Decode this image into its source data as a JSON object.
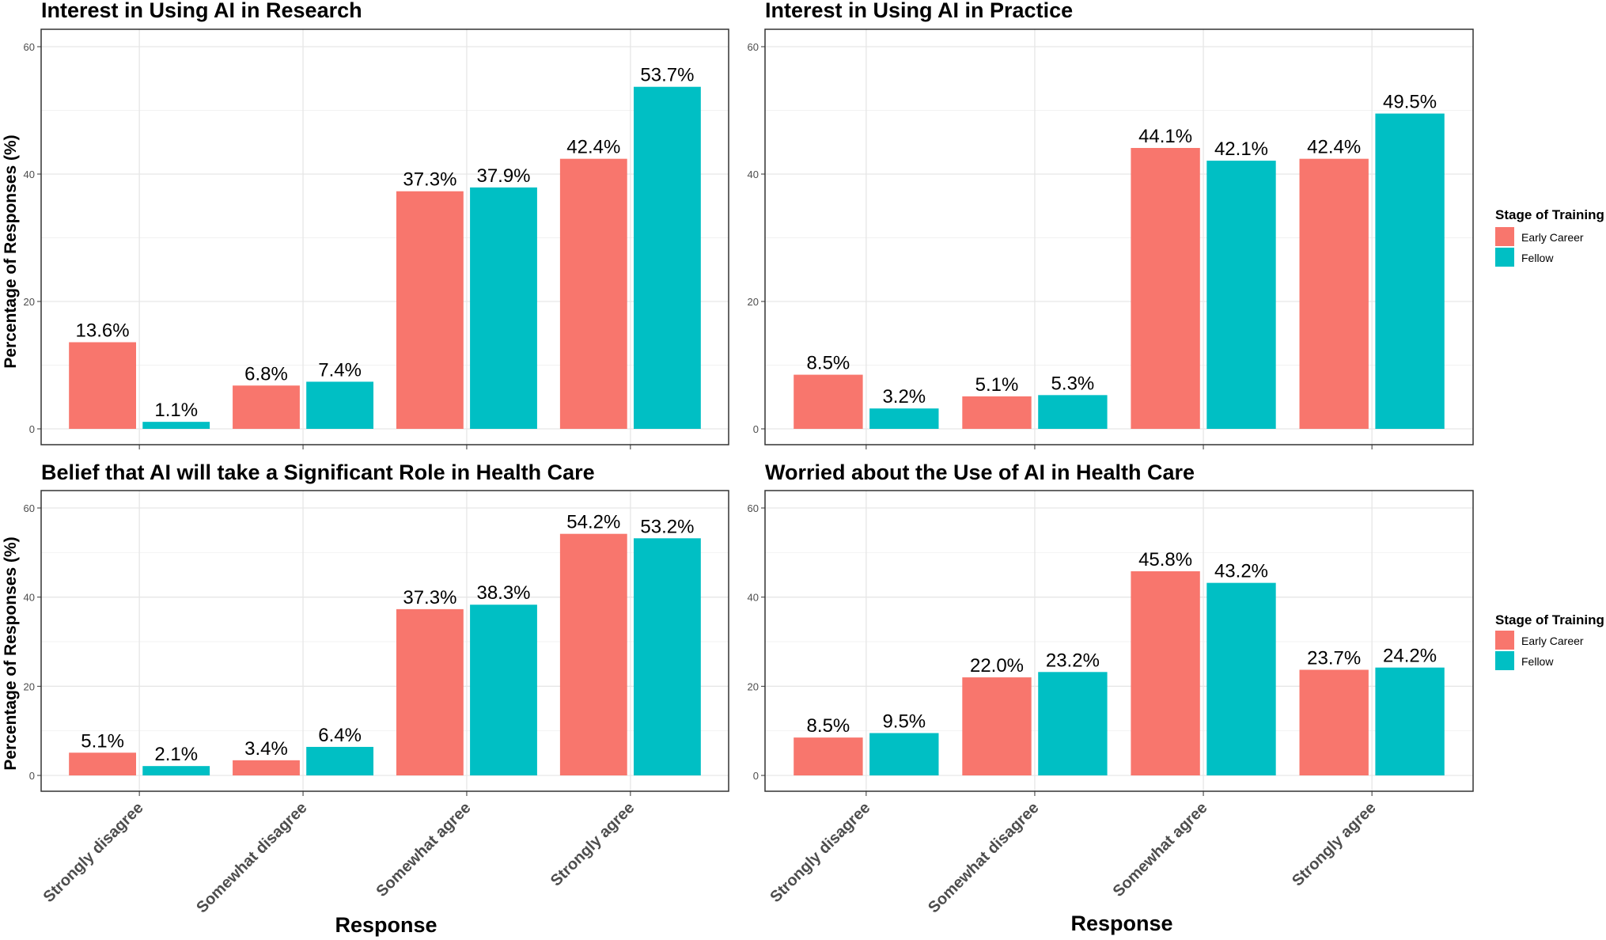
{
  "figure": {
    "shared": {
      "ylabel": "Percentage of Responses (%)",
      "xlabel": "Response",
      "categories": [
        "Strongly disagree",
        "Somewhat disagree",
        "Somewhat agree",
        "Strongly agree"
      ],
      "yticks": [
        0,
        20,
        40,
        60
      ]
    },
    "legend": {
      "title": "Stage of Training",
      "entries": [
        {
          "name": "Early Career",
          "color": "#F8766D"
        },
        {
          "name": "Fellow",
          "color": "#00BFC4"
        }
      ]
    }
  },
  "chart_data": [
    {
      "type": "bar",
      "title": "Interest in Using AI in Research",
      "categories": [
        "Strongly disagree",
        "Somewhat disagree",
        "Somewhat agree",
        "Strongly agree"
      ],
      "series": [
        {
          "name": "Early Career",
          "values": [
            13.6,
            6.8,
            37.3,
            42.4
          ],
          "labels": [
            "13.6%",
            "6.8%",
            "37.3%",
            "42.4%"
          ],
          "color": "#F8766D"
        },
        {
          "name": "Fellow",
          "values": [
            1.1,
            7.4,
            37.9,
            53.7
          ],
          "labels": [
            "1.1%",
            "7.4%",
            "37.9%",
            "53.7%"
          ],
          "color": "#00BFC4"
        }
      ],
      "ylim": [
        0,
        60
      ],
      "grid": true
    },
    {
      "type": "bar",
      "title": "Interest in Using AI in Practice",
      "categories": [
        "Strongly disagree",
        "Somewhat disagree",
        "Somewhat agree",
        "Strongly agree"
      ],
      "series": [
        {
          "name": "Early Career",
          "values": [
            8.5,
            5.1,
            44.1,
            42.4
          ],
          "labels": [
            "8.5%",
            "5.1%",
            "44.1%",
            "42.4%"
          ],
          "color": "#F8766D"
        },
        {
          "name": "Fellow",
          "values": [
            3.2,
            5.3,
            42.1,
            49.5
          ],
          "labels": [
            "3.2%",
            "5.3%",
            "42.1%",
            "49.5%"
          ],
          "color": "#00BFC4"
        }
      ],
      "ylim": [
        0,
        60
      ],
      "grid": true
    },
    {
      "type": "bar",
      "title": "Belief that AI will take a Significant Role in Health Care",
      "categories": [
        "Strongly disagree",
        "Somewhat disagree",
        "Somewhat agree",
        "Strongly agree"
      ],
      "series": [
        {
          "name": "Early Career",
          "values": [
            5.1,
            3.4,
            37.3,
            54.2
          ],
          "labels": [
            "5.1%",
            "3.4%",
            "37.3%",
            "54.2%"
          ],
          "color": "#F8766D"
        },
        {
          "name": "Fellow",
          "values": [
            2.1,
            6.4,
            38.3,
            53.2
          ],
          "labels": [
            "2.1%",
            "6.4%",
            "38.3%",
            "53.2%"
          ],
          "color": "#00BFC4"
        }
      ],
      "ylim": [
        0,
        60
      ],
      "grid": true
    },
    {
      "type": "bar",
      "title": "Worried about the Use of AI in Health Care",
      "categories": [
        "Strongly disagree",
        "Somewhat disagree",
        "Somewhat agree",
        "Strongly agree"
      ],
      "series": [
        {
          "name": "Early Career",
          "values": [
            8.5,
            22.0,
            45.8,
            23.7
          ],
          "labels": [
            "8.5%",
            "22.0%",
            "45.8%",
            "23.7%"
          ],
          "color": "#F8766D"
        },
        {
          "name": "Fellow",
          "values": [
            9.5,
            23.2,
            43.2,
            24.2
          ],
          "labels": [
            "9.5%",
            "23.2%",
            "43.2%",
            "24.2%"
          ],
          "color": "#00BFC4"
        }
      ],
      "ylim": [
        0,
        60
      ],
      "grid": true
    }
  ]
}
